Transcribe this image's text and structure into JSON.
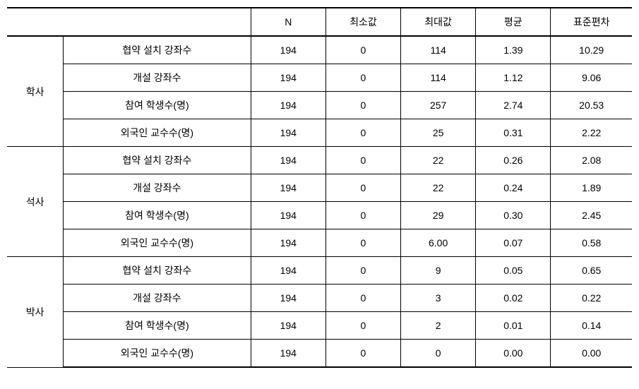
{
  "headers": {
    "n": "N",
    "min": "최소값",
    "max": "최대값",
    "avg": "평균",
    "std": "표준편차"
  },
  "categories": [
    {
      "name": "학사",
      "rows": [
        {
          "label": "협약 설치 강좌수",
          "n": "194",
          "min": "0",
          "max": "114",
          "avg": "1.39",
          "std": "10.29"
        },
        {
          "label": "개설 강좌수",
          "n": "194",
          "min": "0",
          "max": "114",
          "avg": "1.12",
          "std": "9.06"
        },
        {
          "label": "참여 학생수(명)",
          "n": "194",
          "min": "0",
          "max": "257",
          "avg": "2.74",
          "std": "20.53"
        },
        {
          "label": "외국인 교수수(명)",
          "n": "194",
          "min": "0",
          "max": "25",
          "avg": "0.31",
          "std": "2.22"
        }
      ]
    },
    {
      "name": "석사",
      "rows": [
        {
          "label": "협약 설치 강좌수",
          "n": "194",
          "min": "0",
          "max": "22",
          "avg": "0.26",
          "std": "2.08"
        },
        {
          "label": "개설 강좌수",
          "n": "194",
          "min": "0",
          "max": "22",
          "avg": "0.24",
          "std": "1.89"
        },
        {
          "label": "참여 학생수(명)",
          "n": "194",
          "min": "0",
          "max": "29",
          "avg": "0.30",
          "std": "2.45"
        },
        {
          "label": "외국인 교수수(명)",
          "n": "194",
          "min": "0",
          "max": "6.00",
          "avg": "0.07",
          "std": "0.58"
        }
      ]
    },
    {
      "name": "박사",
      "rows": [
        {
          "label": "협약 설치 강좌수",
          "n": "194",
          "min": "0",
          "max": "9",
          "avg": "0.05",
          "std": "0.65"
        },
        {
          "label": "개설 강좌수",
          "n": "194",
          "min": "0",
          "max": "3",
          "avg": "0.02",
          "std": "0.22"
        },
        {
          "label": "참여 학생수(명)",
          "n": "194",
          "min": "0",
          "max": "2",
          "avg": "0.01",
          "std": "0.14"
        },
        {
          "label": "외국인 교수수(명)",
          "n": "194",
          "min": "0",
          "max": "0",
          "avg": "0.00",
          "std": "0.00"
        }
      ]
    }
  ]
}
